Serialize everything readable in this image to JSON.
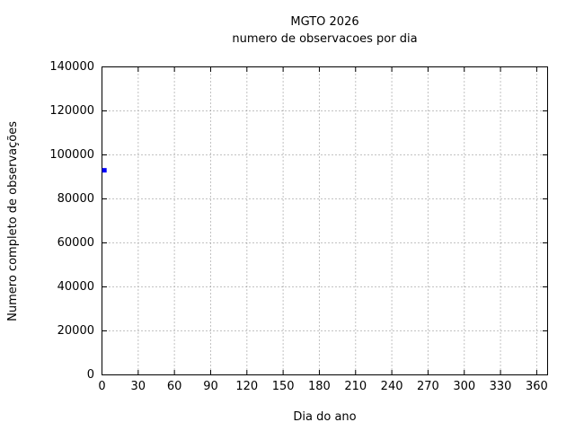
{
  "figure": {
    "title": "MGTO 2026",
    "subtitle": "numero de observacoes por dia",
    "xlabel": "Dia do ano",
    "ylabel": "Numero completo de observações"
  },
  "colors": {
    "background": "#ffffff",
    "axis_border": "#000000",
    "grid": "#848484",
    "text": "#000000",
    "point": "#0000ff"
  },
  "chart_data": {
    "type": "scatter",
    "title": "MGTO 2026",
    "subtitle": "numero de observacoes por dia",
    "xlabel": "Dia do ano",
    "ylabel": "Numero completo de observações",
    "xlim": [
      0,
      369
    ],
    "ylim": [
      0,
      140000
    ],
    "xticks": [
      0,
      30,
      60,
      90,
      120,
      150,
      180,
      210,
      240,
      270,
      300,
      330,
      360
    ],
    "yticks": [
      0,
      20000,
      40000,
      60000,
      80000,
      100000,
      120000,
      140000
    ],
    "grid": true,
    "grid_style": "dotted",
    "ticks_mirrored": true,
    "legend": "none",
    "series": [
      {
        "marker": "filled-square",
        "color": "#0000ff",
        "points": [
          {
            "x": 2,
            "y": 93000
          }
        ]
      }
    ]
  }
}
